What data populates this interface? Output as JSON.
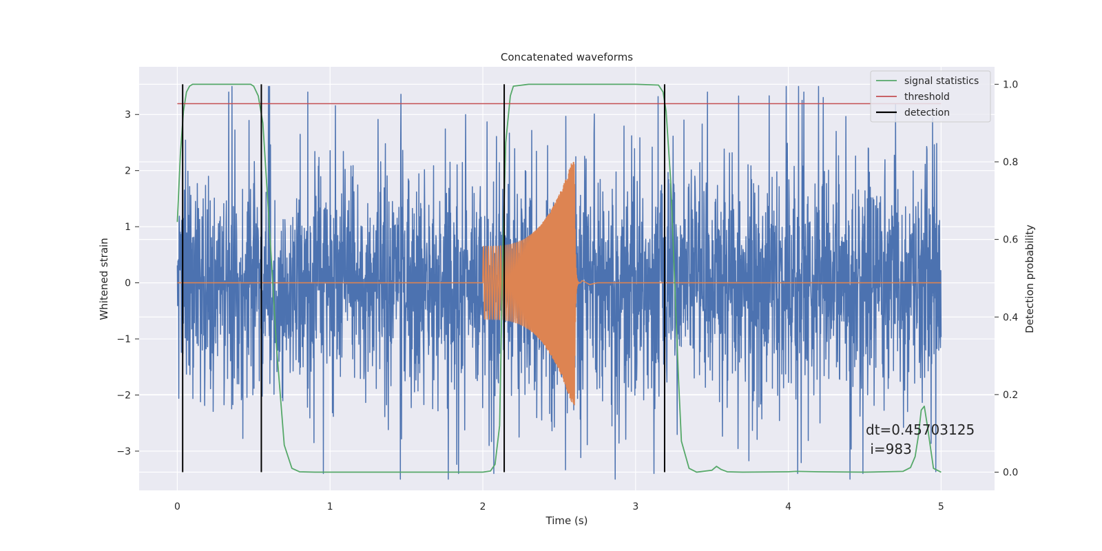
{
  "chart_data": {
    "type": "line",
    "title": "Concatenated waveforms",
    "xlabel": "Time (s)",
    "ylabel_left": "Whitened strain",
    "ylabel_right": "Detection probability",
    "xlim": [
      -0.25,
      5.35
    ],
    "ylim_left": [
      -3.7,
      3.85
    ],
    "ylim_right": [
      -0.047,
      1.045
    ],
    "x_ticks": [
      0,
      1,
      2,
      3,
      4,
      5
    ],
    "y_left_ticks": [
      -3,
      -2,
      -1,
      0,
      1,
      2,
      3
    ],
    "y_left_tick_labels": [
      "−3",
      "−2",
      "−1",
      "0",
      "1",
      "2",
      "3"
    ],
    "y_right_ticks": [
      0.0,
      0.2,
      0.4,
      0.6,
      0.8,
      1.0
    ],
    "y_right_tick_labels": [
      "0.0",
      "0.2",
      "0.4",
      "0.6",
      "0.8",
      "1.0"
    ],
    "grid": true,
    "legend_position": "top-right",
    "colors": {
      "strain": "#4c72b0",
      "waveform": "#dd8452",
      "signal_statistics": "#55a868",
      "threshold": "#c44e52",
      "detection": "#000000",
      "background": "#eaeaf2",
      "grid": "#ffffff"
    },
    "series": [
      {
        "name": "",
        "axis": "left",
        "kind": "noise",
        "color": "#4c72b0",
        "x_range": [
          0,
          5
        ],
        "typical_amplitude": 1.5,
        "peak_range": [
          -3.4,
          3.5
        ]
      },
      {
        "name": "",
        "axis": "left",
        "kind": "chirp",
        "color": "#dd8452",
        "x_range": [
          0,
          5
        ],
        "chirp_start": 2.0,
        "merger": 2.6,
        "start_amplitude": 0.65,
        "peak_amplitude": 2.3,
        "baseline": 0
      },
      {
        "name": "signal statistics",
        "axis": "right",
        "color": "#55a868",
        "x": [
          0.0,
          0.02,
          0.04,
          0.06,
          0.08,
          0.1,
          0.15,
          0.2,
          0.3,
          0.4,
          0.48,
          0.5,
          0.53,
          0.56,
          0.6,
          0.65,
          0.7,
          0.75,
          0.8,
          0.9,
          1.0,
          1.5,
          2.0,
          2.05,
          2.08,
          2.11,
          2.13,
          2.15,
          2.18,
          2.2,
          2.3,
          2.5,
          3.0,
          3.15,
          3.18,
          3.2,
          3.23,
          3.25,
          3.28,
          3.3,
          3.35,
          3.4,
          3.5,
          3.53,
          3.56,
          3.6,
          3.7,
          4.0,
          4.05,
          4.2,
          4.5,
          4.75,
          4.8,
          4.83,
          4.85,
          4.87,
          4.89,
          4.91,
          4.95,
          5.0
        ],
        "y": [
          0.645,
          0.82,
          0.93,
          0.98,
          0.995,
          1.0,
          1.0,
          1.0,
          1.0,
          1.0,
          1.0,
          0.995,
          0.97,
          0.9,
          0.65,
          0.32,
          0.07,
          0.01,
          0.001,
          0.0,
          0.0,
          0.0,
          0.0,
          0.003,
          0.02,
          0.12,
          0.55,
          0.85,
          0.97,
          0.995,
          1.0,
          1.0,
          1.0,
          0.998,
          0.98,
          0.93,
          0.75,
          0.55,
          0.25,
          0.08,
          0.01,
          0.0,
          0.005,
          0.015,
          0.007,
          0.001,
          0.0,
          0.001,
          0.002,
          0.001,
          0.0,
          0.002,
          0.012,
          0.04,
          0.09,
          0.16,
          0.17,
          0.12,
          0.01,
          0.0
        ]
      },
      {
        "name": "threshold",
        "axis": "right",
        "color": "#c44e52",
        "x": [
          0,
          5
        ],
        "y": [
          0.95,
          0.95
        ]
      },
      {
        "name": "detection",
        "axis": "right",
        "color": "#000000",
        "kind": "vlines",
        "x": [
          0.035,
          0.55,
          2.14,
          3.19
        ],
        "y_from": 0.0,
        "y_to": 1.0
      }
    ],
    "annotation": {
      "line1": "dt=0.45703125",
      "line2": " i=983"
    }
  }
}
